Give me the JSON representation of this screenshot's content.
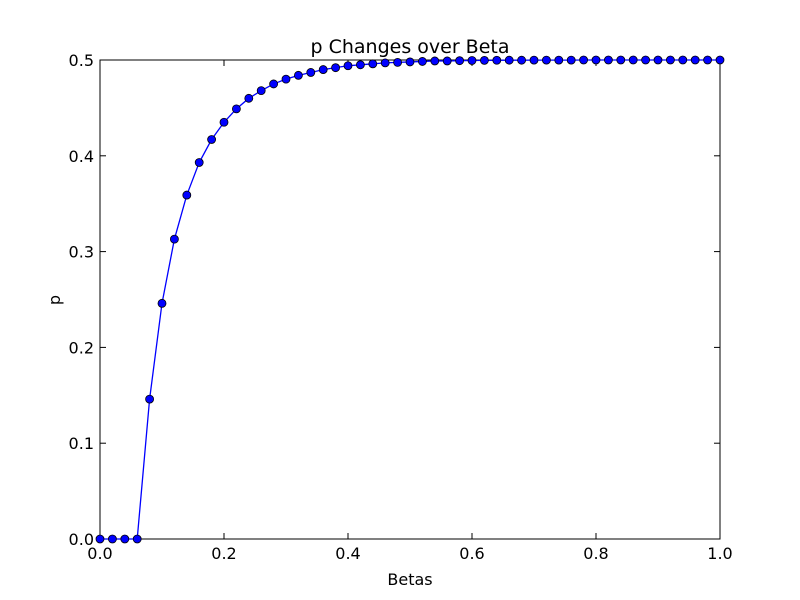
{
  "chart_data": {
    "type": "line",
    "title": "p Changes over Beta",
    "xlabel": "Betas",
    "ylabel": "p",
    "xlim": [
      0.0,
      1.0
    ],
    "ylim": [
      0.0,
      0.5
    ],
    "xticks": [
      "0.0",
      "0.2",
      "0.4",
      "0.6",
      "0.8",
      "1.0"
    ],
    "yticks": [
      "0.0",
      "0.1",
      "0.2",
      "0.3",
      "0.4",
      "0.5"
    ],
    "grid": false,
    "marker": "circle",
    "color": "#0000ff",
    "series": [
      {
        "x": [
          0.0,
          0.02,
          0.04,
          0.06,
          0.08,
          0.1,
          0.12,
          0.14,
          0.16,
          0.18,
          0.2,
          0.22,
          0.24,
          0.26,
          0.28,
          0.3,
          0.32,
          0.34,
          0.36,
          0.38,
          0.4,
          0.42,
          0.44,
          0.46,
          0.48,
          0.5,
          0.52,
          0.54,
          0.56,
          0.58,
          0.6,
          0.62,
          0.64,
          0.66,
          0.68,
          0.7,
          0.72,
          0.74,
          0.76,
          0.78,
          0.8,
          0.82,
          0.84,
          0.86,
          0.88,
          0.9,
          0.92,
          0.94,
          0.96,
          0.98,
          1.0
        ],
        "y": [
          0.0,
          0.0,
          0.0,
          0.0,
          0.146,
          0.246,
          0.313,
          0.359,
          0.393,
          0.417,
          0.435,
          0.449,
          0.46,
          0.468,
          0.475,
          0.48,
          0.484,
          0.487,
          0.49,
          0.492,
          0.494,
          0.495,
          0.496,
          0.497,
          0.4975,
          0.498,
          0.4985,
          0.499,
          0.499,
          0.4993,
          0.4995,
          0.4996,
          0.4997,
          0.4998,
          0.4998,
          0.4999,
          0.4999,
          0.4999,
          0.4999,
          0.5,
          0.5,
          0.5,
          0.5,
          0.5,
          0.5,
          0.5,
          0.5,
          0.5,
          0.5,
          0.5,
          0.5
        ]
      }
    ]
  }
}
